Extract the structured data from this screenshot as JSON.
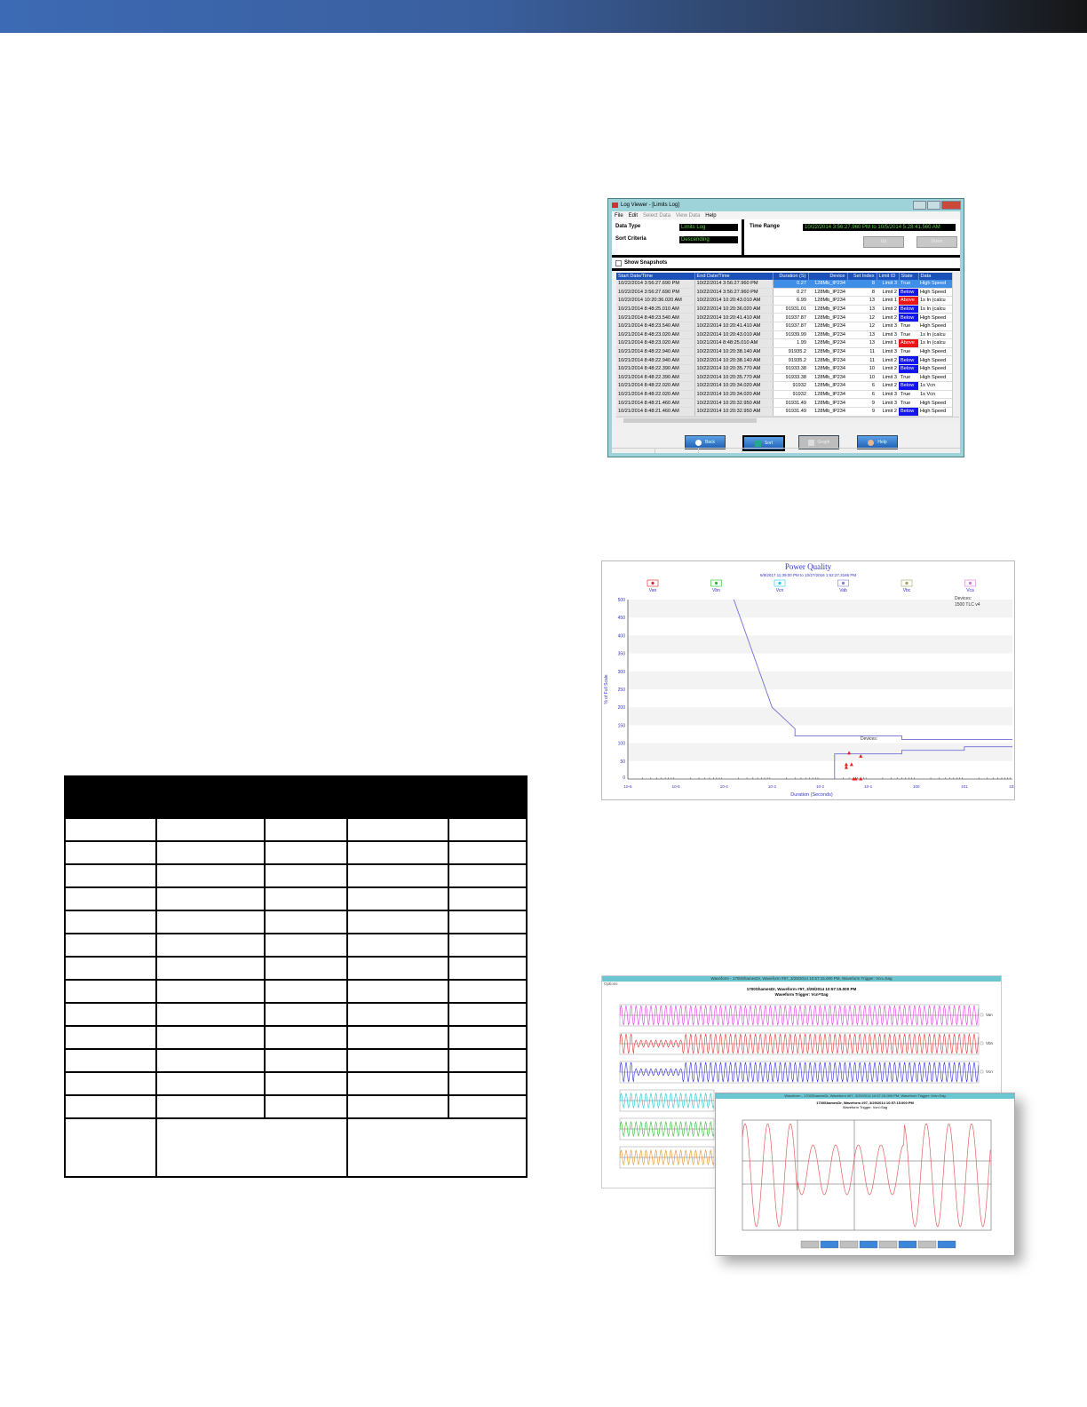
{
  "colors": {
    "banner_start": "#3c6ab4",
    "banner_end": "#151515",
    "select": "#1a50b8",
    "below": "#1414ee",
    "above": "#ee1414"
  },
  "log_viewer": {
    "title": "Log Viewer - [Limits Log]",
    "menu": [
      "File",
      "Edit",
      "Select Data",
      "View Data",
      "Help"
    ],
    "data_type_label": "Data Type",
    "data_type": "Limits Log",
    "sort_label": "Sort Criteria",
    "sort": "Descending",
    "time_range_label": "Time Range",
    "time_range": "10/22/2014 3:56:27.960 PM to 10/5/2014 5:28:41.560 AM",
    "up_label": "Up",
    "down_label": "Down",
    "show_snapshots": "Show Snapshots",
    "columns": [
      "Start Date/Time",
      "End Date/Time",
      "Duration (S)",
      "Device",
      "Set Index",
      "Limit ID",
      "State",
      "Data"
    ],
    "rows": [
      [
        "10/22/2014 3:56:27.690 PM",
        "10/22/2014 3:56:27.960 PM",
        "0.27",
        "128Mb_IP234",
        "8",
        "Limit 3",
        "True",
        "High Speed"
      ],
      [
        "10/22/2014 3:56:27.690 PM",
        "10/22/2014 3:56:27.960 PM",
        "0.27",
        "128Mb_IP234",
        "8",
        "Limit 2",
        "Below",
        "High Speed"
      ],
      [
        "10/22/2014 10:20:36.020 AM",
        "10/22/2014 10:20:43.010 AM",
        "6.99",
        "128Mb_IP234",
        "13",
        "Limit 1",
        "Above",
        "1s In (calcu"
      ],
      [
        "10/21/2014 8:48:25.010 AM",
        "10/22/2014 10:20:36.020 AM",
        "91931.01",
        "128Mb_IP234",
        "13",
        "Limit 2",
        "Below",
        "1s In (calcu"
      ],
      [
        "10/21/2014 8:48:23.540 AM",
        "10/22/2014 10:20:41.410 AM",
        "91937.87",
        "128Mb_IP234",
        "12",
        "Limit 2",
        "Below",
        "High Speed"
      ],
      [
        "10/21/2014 8:48:23.540 AM",
        "10/22/2014 10:20:41.410 AM",
        "91937.87",
        "128Mb_IP234",
        "12",
        "Limit 3",
        "True",
        "High Speed"
      ],
      [
        "10/21/2014 8:48:23.020 AM",
        "10/22/2014 10:20:43.010 AM",
        "91939.99",
        "128Mb_IP234",
        "13",
        "Limit 3",
        "True",
        "1s In (calcu"
      ],
      [
        "10/21/2014 8:48:23.020 AM",
        "10/21/2014 8:48:25.010 AM",
        "1.99",
        "128Mb_IP234",
        "13",
        "Limit 1",
        "Above",
        "1s In (calcu"
      ],
      [
        "10/21/2014 8:48:22.940 AM",
        "10/22/2014 10:20:38.140 AM",
        "91935.2",
        "128Mb_IP234",
        "11",
        "Limit 3",
        "True",
        "High Speed"
      ],
      [
        "10/21/2014 8:48:22.940 AM",
        "10/22/2014 10:20:38.140 AM",
        "91935.2",
        "128Mb_IP234",
        "11",
        "Limit 2",
        "Below",
        "High Speed"
      ],
      [
        "10/21/2014 8:48:22.390 AM",
        "10/22/2014 10:20:35.770 AM",
        "91933.38",
        "128Mb_IP234",
        "10",
        "Limit 2",
        "Below",
        "High Speed"
      ],
      [
        "10/21/2014 8:48:22.390 AM",
        "10/22/2014 10:20:35.770 AM",
        "91933.38",
        "128Mb_IP234",
        "10",
        "Limit 3",
        "True",
        "High Speed"
      ],
      [
        "10/21/2014 8:48:22.020 AM",
        "10/22/2014 10:20:34.020 AM",
        "91932",
        "128Mb_IP234",
        "6",
        "Limit 2",
        "Below",
        "1s Vcn"
      ],
      [
        "10/21/2014 8:48:22.020 AM",
        "10/22/2014 10:20:34.020 AM",
        "91932",
        "128Mb_IP234",
        "6",
        "Limit 3",
        "True",
        "1s Vcn"
      ],
      [
        "10/21/2014 8:48:21.460 AM",
        "10/22/2014 10:20:32.950 AM",
        "91931.49",
        "128Mb_IP234",
        "9",
        "Limit 3",
        "True",
        "High Speed"
      ],
      [
        "10/21/2014 8:48:21.460 AM",
        "10/22/2014 10:20:32.950 AM",
        "91931.49",
        "128Mb_IP234",
        "9",
        "Limit 2",
        "Below",
        "High Speed"
      ]
    ],
    "buttons": {
      "back": "Back",
      "sort": "Sort",
      "graph": "Graph",
      "help": "Help"
    }
  },
  "chart_data": {
    "type": "line",
    "title": "Power Quality",
    "subtitle": "6/8/2017 11:39:00 PM to 10/27/2016 1:52:27.3166 PM",
    "xlabel": "Duration (Seconds)",
    "ylabel": "% of Full Scale",
    "x_scale": "log",
    "xlim": [
      1e-06,
      100
    ],
    "ylim": [
      0,
      500
    ],
    "x_ticks": [
      "10-6",
      "10-5",
      "10-4",
      "10-3",
      "10-2",
      "10-1",
      "100",
      "101",
      "102"
    ],
    "y_ticks": [
      0,
      50,
      100,
      150,
      200,
      250,
      300,
      350,
      400,
      450,
      500
    ],
    "grid": "horizontal bands",
    "legend": [
      {
        "name": "Van",
        "color": "#e02020",
        "marker": "triangle-up"
      },
      {
        "name": "Vbn",
        "color": "#20c020",
        "marker": "square"
      },
      {
        "name": "Vcn",
        "color": "#20c8e0",
        "marker": "triangle-down"
      },
      {
        "name": "Vab",
        "color": "#8080d0",
        "marker": "diamond"
      },
      {
        "name": "Vbc",
        "color": "#a0a060",
        "marker": "x"
      },
      {
        "name": "Vca",
        "color": "#e070e0",
        "marker": "circle"
      }
    ],
    "legend_position": "top",
    "annotations": [
      "Devices:\n1500 TLC v4",
      "Devices:"
    ],
    "upper_curve": [
      [
        0.00016,
        500
      ],
      [
        0.001,
        200
      ],
      [
        0.003,
        140
      ],
      [
        0.003,
        120
      ],
      [
        0.5,
        120
      ],
      [
        0.5,
        110
      ],
      [
        100,
        110
      ]
    ],
    "lower_curve": [
      [
        0.02,
        0
      ],
      [
        0.02,
        70
      ],
      [
        0.5,
        70
      ],
      [
        0.5,
        80
      ],
      [
        10,
        80
      ],
      [
        10,
        90
      ],
      [
        100,
        90
      ]
    ],
    "van_points": [
      [
        0.04,
        72
      ],
      [
        0.07,
        63
      ],
      [
        0.035,
        40
      ],
      [
        0.035,
        32
      ],
      [
        0.045,
        40
      ],
      [
        0.05,
        0
      ],
      [
        0.055,
        0
      ],
      [
        0.07,
        0
      ]
    ]
  },
  "waveform": {
    "title": "Waveform - 1700ShamesDr, Waveform #97, 3/29/2014 10:57:15.000 PM, Waveform Trigger: Vcn=Sag",
    "options": "Options",
    "heading1": "1700ShamesDr, Waveform #97, 3/29/2014 10:57:15.000 PM",
    "heading2": "Waveform Trigger: Vcn=Sag",
    "channels": [
      {
        "name": "Van",
        "color": "#e040e0"
      },
      {
        "name": "Vbn",
        "color": "#e03838"
      },
      {
        "name": "Vcn",
        "color": "#3030d8"
      },
      {
        "name": "",
        "color": "#20c8d0"
      },
      {
        "name": "",
        "color": "#30c030"
      },
      {
        "name": "",
        "color": "#e89020"
      }
    ],
    "zoom_color": "#e06060"
  }
}
